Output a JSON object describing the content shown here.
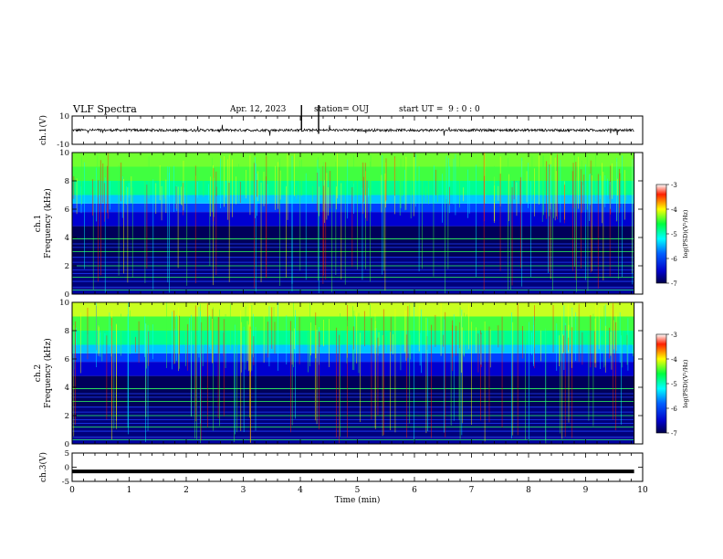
{
  "header": {
    "title": "VLF Spectra",
    "date": "Apr. 12, 2023",
    "station": "station= OUJ",
    "start": "start UT =  9 : 0 : 0"
  },
  "chart_data": [
    {
      "type": "line",
      "panel": "ch.1 waveform",
      "ylabel": "ch.1(V)",
      "ylim": [
        -10,
        10
      ],
      "yticks": [
        "10",
        "-10"
      ],
      "xlim": [
        0,
        10
      ],
      "series": [
        {
          "values_approx": 0,
          "style": "noisy trace near 0 V with sparse spikes"
        }
      ]
    },
    {
      "type": "heatmap",
      "panel": "ch.1 spectrogram",
      "ylabel": "ch.1\nFrequency (kHz)",
      "ylim": [
        0,
        10
      ],
      "yticks": [
        "0",
        "2",
        "4",
        "6",
        "8",
        "10"
      ],
      "xlim": [
        0,
        9.85
      ],
      "colorbar": {
        "label": "log(PSD)(V²/Hz)",
        "range": [
          -7,
          -3
        ],
        "ticks": [
          "-3",
          "-4",
          "-5",
          "-6",
          "-7"
        ]
      }
    },
    {
      "type": "heatmap",
      "panel": "ch.2 spectrogram",
      "ylabel": "ch.2\nFrequency (kHz)",
      "ylim": [
        0,
        10
      ],
      "yticks": [
        "0",
        "2",
        "4",
        "6",
        "8",
        "10"
      ],
      "xlim": [
        0,
        9.85
      ],
      "colorbar": {
        "label": "log(PSD)(V²/Hz)",
        "range": [
          -7,
          -3
        ],
        "ticks": [
          "-3",
          "-4",
          "-5",
          "-6",
          "-7"
        ]
      }
    },
    {
      "type": "line",
      "panel": "ch.3 waveform",
      "ylabel": "ch.3(V)",
      "ylim": [
        -5,
        5
      ],
      "yticks": [
        "5",
        "0",
        "-5"
      ],
      "xlim": [
        0,
        10
      ],
      "series": [
        {
          "values_approx": -1.5,
          "style": "thick flat trace"
        }
      ]
    }
  ],
  "x_axis": {
    "label": "Time (min)",
    "ticks": [
      "0",
      "1",
      "2",
      "3",
      "4",
      "5",
      "6",
      "7",
      "8",
      "9",
      "10"
    ],
    "range": [
      0,
      10
    ]
  },
  "colors": {
    "colormap": [
      "#00008b",
      "#0000ff",
      "#00ffff",
      "#00ff00",
      "#ffff00",
      "#ff0000",
      "#ffffff"
    ]
  }
}
